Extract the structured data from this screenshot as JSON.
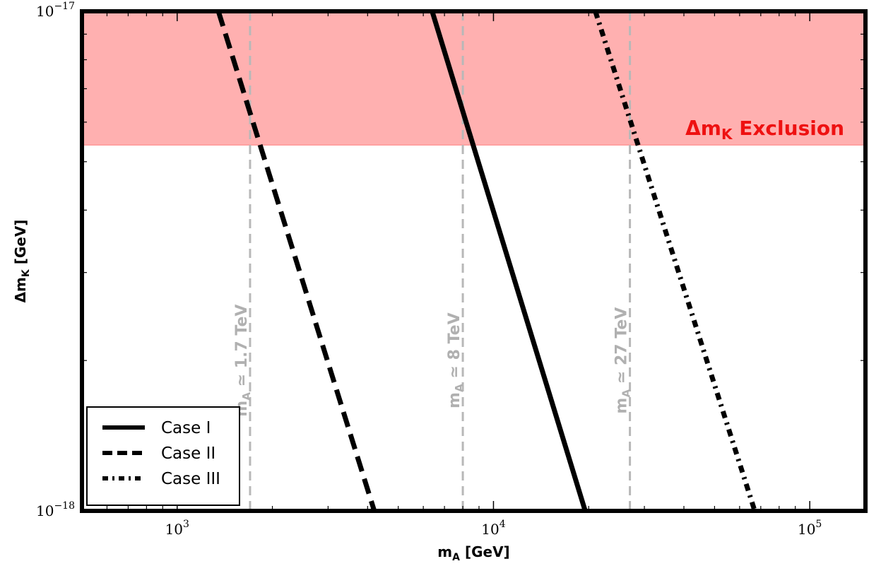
{
  "chart_data": {
    "type": "line",
    "xlabel": "m_A [GeV]",
    "ylabel": "Δm_K [GeV]",
    "x_scale": "log",
    "y_scale": "log",
    "xlim": [
      500,
      150000
    ],
    "ylim": [
      1e-18,
      1e-17
    ],
    "x_ticks": [
      {
        "value": 1000,
        "label": "10^3"
      },
      {
        "value": 10000,
        "label": "10^4"
      },
      {
        "value": 100000,
        "label": "10^5"
      }
    ],
    "y_ticks": [
      {
        "value": 1e-18,
        "label": "10^−18"
      },
      {
        "value": 1e-17,
        "label": "10^−17"
      }
    ],
    "grid": false,
    "legend_position": "bottom-left",
    "exclusion_region": {
      "label": "Δm_K Exclusion",
      "y_from": 5.4e-18,
      "y_to": 1e-17,
      "color": "#ffb0b0"
    },
    "vertical_lines": [
      {
        "x": 1700,
        "label": "m_A ≃ 1.7 TeV",
        "color": "#b8b8b8"
      },
      {
        "x": 8000,
        "label": "m_A ≃ 8 TeV",
        "color": "#b8b8b8"
      },
      {
        "x": 27000,
        "label": "m_A ≃ 27 TeV",
        "color": "#b8b8b8"
      }
    ],
    "series": [
      {
        "name": "Case I",
        "style": "solid",
        "x": [
          6400,
          19500
        ],
        "y": [
          1e-17,
          1e-18
        ]
      },
      {
        "name": "Case II",
        "style": "dashed",
        "x": [
          1350,
          4200
        ],
        "y": [
          1e-17,
          1e-18
        ]
      },
      {
        "name": "Case III",
        "style": "dashdot",
        "x": [
          21000,
          67000
        ],
        "y": [
          1e-17,
          1e-18
        ]
      }
    ]
  }
}
